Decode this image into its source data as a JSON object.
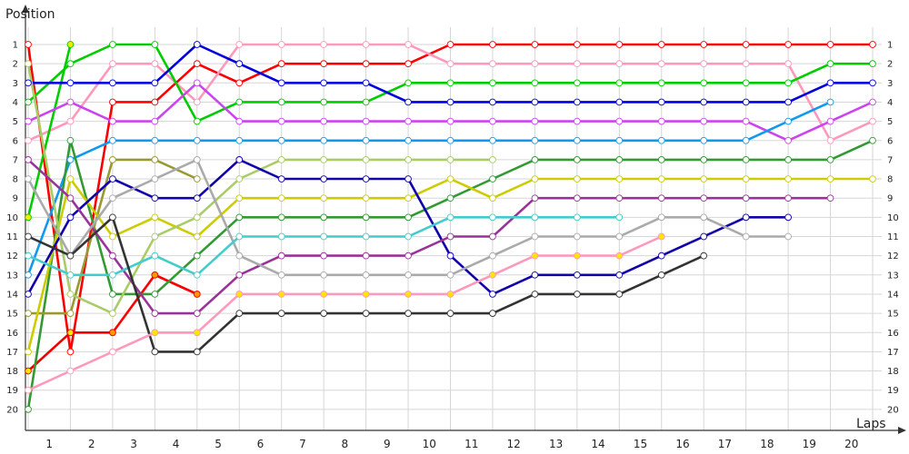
{
  "chart_data": {
    "type": "line",
    "title": "",
    "xlabel": "Laps",
    "ylabel": "Position",
    "x_ticks": [
      1,
      2,
      3,
      4,
      5,
      6,
      7,
      8,
      9,
      10,
      11,
      12,
      13,
      14,
      15,
      16,
      17,
      18,
      19,
      20
    ],
    "y_ticks": [
      1,
      2,
      3,
      4,
      5,
      6,
      7,
      8,
      9,
      10,
      11,
      12,
      13,
      14,
      15,
      16,
      17,
      18,
      19,
      20
    ],
    "xlim": [
      0,
      20.5
    ],
    "ylim": [
      1,
      20
    ],
    "grid": true,
    "legend": "none",
    "series": [
      {
        "color": "#ff0000",
        "marker": "#ffffff",
        "x": [
          0,
          1,
          2,
          3,
          4,
          5,
          6,
          7,
          8,
          9,
          10,
          11,
          12,
          13,
          14,
          15,
          16,
          17,
          18,
          19,
          20
        ],
        "y": [
          1,
          17,
          4,
          4,
          2,
          3,
          2,
          2,
          2,
          2,
          1,
          1,
          1,
          1,
          1,
          1,
          1,
          1,
          1,
          1,
          1
        ]
      },
      {
        "color": "#ee0000",
        "marker": "#ffe600",
        "x": [
          0,
          1,
          2
        ],
        "y": [
          18,
          16,
          16
        ]
      },
      {
        "color": "#ee0000",
        "marker": "#ffe600",
        "x": [
          3,
          4
        ],
        "y": [
          13,
          14
        ]
      },
      {
        "color": "#ff0000",
        "marker": "#ff9900",
        "x": [
          2,
          3,
          4
        ],
        "y": [
          16,
          13,
          14
        ]
      },
      {
        "color": "#ff99bb",
        "marker": "#ffffff",
        "x": [
          0,
          1,
          2,
          3,
          4,
          5,
          6,
          7,
          8,
          9,
          10,
          11,
          12,
          13,
          14,
          15,
          16,
          17,
          18,
          19,
          20
        ],
        "y": [
          6,
          5,
          2,
          2,
          4,
          1,
          1,
          1,
          1,
          1,
          2,
          2,
          2,
          2,
          2,
          2,
          2,
          2,
          2,
          6,
          5
        ]
      },
      {
        "color": "#00cc00",
        "marker": "#ffffff",
        "x": [
          0,
          1,
          2,
          3,
          4,
          5,
          6,
          7,
          8,
          9,
          10,
          11,
          12,
          13,
          14,
          15,
          16,
          17,
          18,
          19,
          20
        ],
        "y": [
          4,
          2,
          1,
          1,
          5,
          4,
          4,
          4,
          4,
          3,
          3,
          3,
          3,
          3,
          3,
          3,
          3,
          3,
          3,
          2,
          2
        ]
      },
      {
        "color": "#00cc00",
        "marker": "#ffe600",
        "x": [
          0,
          1
        ],
        "y": [
          10,
          1
        ]
      },
      {
        "color": "#0000dd",
        "marker": "#ffffff",
        "x": [
          0,
          1,
          2,
          3,
          4,
          5,
          6,
          7,
          8,
          9,
          10,
          11,
          12,
          13,
          14,
          15,
          16,
          17,
          18,
          19,
          20
        ],
        "y": [
          3,
          3,
          3,
          3,
          1,
          2,
          3,
          3,
          3,
          4,
          4,
          4,
          4,
          4,
          4,
          4,
          4,
          4,
          4,
          3,
          3
        ]
      },
      {
        "color": "#cc44ee",
        "marker": "#ffffff",
        "x": [
          0,
          1,
          2,
          3,
          4,
          5,
          6,
          7,
          8,
          9,
          10,
          11,
          12,
          13,
          14,
          15,
          16,
          17,
          18,
          19,
          20
        ],
        "y": [
          5,
          4,
          5,
          5,
          3,
          5,
          5,
          5,
          5,
          5,
          5,
          5,
          5,
          5,
          5,
          5,
          5,
          5,
          6,
          5,
          4
        ]
      },
      {
        "color": "#1199ee",
        "marker": "#ffffff",
        "x": [
          0,
          1,
          2,
          3,
          4,
          5,
          6,
          7,
          8,
          9,
          10,
          11,
          12,
          13,
          14,
          15,
          16,
          17,
          18,
          19
        ],
        "y": [
          13,
          7,
          6,
          6,
          6,
          6,
          6,
          6,
          6,
          6,
          6,
          6,
          6,
          6,
          6,
          6,
          6,
          6,
          5,
          4
        ]
      },
      {
        "color": "#339933",
        "marker": "#ffffff",
        "x": [
          0,
          1,
          2,
          3,
          4,
          5,
          6,
          7,
          8,
          9,
          10,
          11,
          12,
          13,
          14,
          15,
          16,
          17,
          18,
          19,
          20
        ],
        "y": [
          20,
          6,
          14,
          14,
          12,
          10,
          10,
          10,
          10,
          10,
          9,
          8,
          7,
          7,
          7,
          7,
          7,
          7,
          7,
          7,
          6
        ]
      },
      {
        "color": "#999933",
        "marker": "#ffffff",
        "x": [
          0,
          1,
          2,
          3,
          4
        ],
        "y": [
          15,
          15,
          7,
          7,
          8
        ]
      },
      {
        "color": "#cccc00",
        "marker": "#ffffff",
        "x": [
          0,
          1,
          2,
          3,
          4,
          5,
          6,
          7,
          8,
          9,
          10,
          11,
          12,
          13,
          14,
          15,
          16,
          17,
          18,
          19,
          20
        ],
        "y": [
          17,
          8,
          11,
          10,
          11,
          9,
          9,
          9,
          9,
          9,
          8,
          9,
          8,
          8,
          8,
          8,
          8,
          8,
          8,
          8,
          8
        ]
      },
      {
        "color": "#aacc66",
        "marker": "#ffffff",
        "x": [
          0,
          1,
          2,
          3,
          4,
          5,
          6,
          7,
          8,
          9,
          10,
          11
        ],
        "y": [
          2,
          14,
          15,
          11,
          10,
          8,
          7,
          7,
          7,
          7,
          7,
          7
        ]
      },
      {
        "color": "#1100aa",
        "marker": "#ffffff",
        "x": [
          0,
          1,
          2,
          3,
          4,
          5,
          6,
          7,
          8,
          9,
          10,
          11,
          12,
          13,
          14,
          15,
          16,
          17,
          18
        ],
        "y": [
          14,
          10,
          8,
          9,
          9,
          7,
          8,
          8,
          8,
          8,
          12,
          14,
          13,
          13,
          13,
          12,
          11,
          10,
          10
        ]
      },
      {
        "color": "#993399",
        "marker": "#ffffff",
        "x": [
          0,
          1,
          2,
          3,
          4,
          5,
          6,
          7,
          8,
          9,
          10,
          11,
          12,
          13,
          14,
          15,
          16,
          17,
          18,
          19
        ],
        "y": [
          7,
          9,
          12,
          15,
          15,
          13,
          12,
          12,
          12,
          12,
          11,
          11,
          9,
          9,
          9,
          9,
          9,
          9,
          9,
          9
        ]
      },
      {
        "color": "#aaaaaa",
        "marker": "#ffffff",
        "x": [
          0,
          1,
          2,
          3,
          4,
          5,
          6,
          7,
          8,
          9,
          10,
          11,
          12,
          13,
          14,
          15,
          16,
          17,
          18
        ],
        "y": [
          8,
          12,
          9,
          8,
          7,
          12,
          13,
          13,
          13,
          13,
          13,
          12,
          11,
          11,
          11,
          10,
          10,
          11,
          11
        ]
      },
      {
        "color": "#44cccc",
        "marker": "#ffffff",
        "x": [
          0,
          1,
          2,
          3,
          4,
          5,
          6,
          7,
          8,
          9,
          10,
          11,
          12,
          13,
          14
        ],
        "y": [
          12,
          13,
          13,
          12,
          13,
          11,
          11,
          11,
          11,
          11,
          10,
          10,
          10,
          10,
          10
        ]
      },
      {
        "color": "#333333",
        "marker": "#ffffff",
        "x": [
          0,
          1,
          2,
          3,
          4,
          5,
          6,
          7,
          8,
          9,
          10,
          11,
          12,
          13,
          14,
          15,
          16
        ],
        "y": [
          11,
          12,
          10,
          17,
          17,
          15,
          15,
          15,
          15,
          15,
          15,
          15,
          14,
          14,
          14,
          13,
          12
        ]
      },
      {
        "color": "#ff99bb",
        "marker": "#ffffff",
        "x": [
          0,
          1,
          2,
          3,
          4,
          5
        ],
        "y": [
          19,
          18,
          17,
          16,
          16,
          14
        ]
      },
      {
        "color": "#ff99bb",
        "marker": "#ffe600",
        "x": [
          5,
          6,
          7,
          8,
          9,
          10,
          11,
          12,
          13,
          14,
          15
        ],
        "y": [
          14,
          14,
          14,
          14,
          14,
          14,
          13,
          12,
          12,
          12,
          11
        ]
      },
      {
        "color": "#ff99bb",
        "marker": "#ffe600",
        "x": [
          3,
          4
        ],
        "y": [
          16,
          16
        ]
      }
    ]
  }
}
